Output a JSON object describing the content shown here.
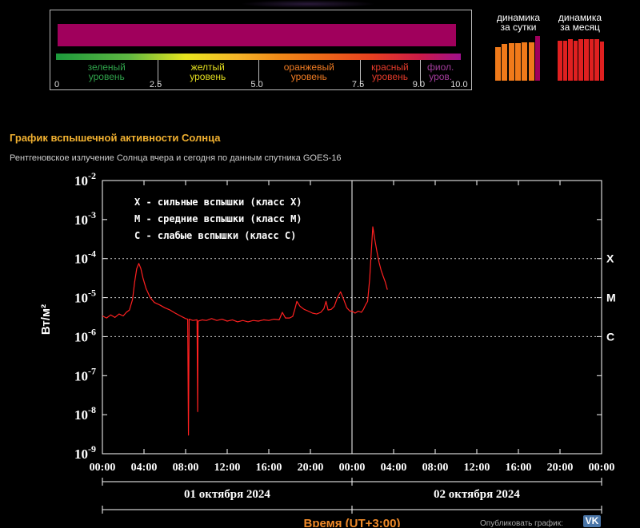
{
  "scale": {
    "levels": [
      {
        "line1": "зеленый",
        "line2": "уровень",
        "color": "#2fa24a"
      },
      {
        "line1": "желтый",
        "line2": "уровень",
        "color": "#e4df1f"
      },
      {
        "line1": "оранжевый",
        "line2": "уровень",
        "color": "#ee7a22"
      },
      {
        "line1": "красный",
        "line2": "уровень",
        "color": "#e43a2a"
      },
      {
        "line1": "фиол.",
        "line2": "уров.",
        "color": "#a33c9c"
      }
    ],
    "ticks": [
      "0",
      "2.5",
      "5.0",
      "7.5",
      "9.0",
      "10.0"
    ],
    "current_value": 10.0,
    "bar_color": "#a0005c"
  },
  "dynamics": {
    "day_title": [
      "динамика",
      "за сутки"
    ],
    "month_title": [
      "динамика",
      "за месяц"
    ],
    "day_values": [
      7.5,
      8.2,
      8.4,
      8.4,
      8.5,
      8.6,
      10.0
    ],
    "day_colors": [
      "#f07a1a",
      "#f07a1a",
      "#f07a1a",
      "#f07a1a",
      "#f07a1a",
      "#f07a1a",
      "#a0005c"
    ],
    "month_values": [
      9.0,
      9.0,
      9.2,
      9.0,
      9.2,
      9.2,
      9.2,
      9.2,
      8.8
    ],
    "month_color": "#e02020"
  },
  "chart_title": "График вспышечной активности Солнца",
  "chart_subtitle": "Рентгеновское излучение Солнца вчера и сегодня по данным спутника GOES-16",
  "publish_label": "Опубликовать график:",
  "vk_label": "VK",
  "chart_data": {
    "type": "line",
    "title": "График вспышечной активности Солнца",
    "ylabel": "Вт/м²",
    "xlabel": "Время (UT+3:00)",
    "y_scale": "log",
    "ylim": [
      1e-09,
      0.01
    ],
    "y_ticks": [
      "10^-2",
      "10^-3",
      "10^-4",
      "10^-5",
      "10^-6",
      "10^-7",
      "10^-8",
      "10^-9"
    ],
    "x_range_hours": [
      0,
      48
    ],
    "x_tick_labels": [
      "00:00",
      "04:00",
      "08:00",
      "12:00",
      "16:00",
      "20:00",
      "00:00",
      "04:00",
      "08:00",
      "12:00",
      "16:00",
      "20:00",
      "00:00"
    ],
    "days": [
      {
        "label": "01 октября 2024",
        "from_hour": 0,
        "to_hour": 24
      },
      {
        "label": "02 октября 2024",
        "from_hour": 24,
        "to_hour": 48
      }
    ],
    "day_separator_hour": 24,
    "class_lines": [
      {
        "label": "X",
        "value": 0.0001
      },
      {
        "label": "M",
        "value": 1e-05
      },
      {
        "label": "C",
        "value": 1e-06
      }
    ],
    "legend": [
      {
        "key": "X",
        "text": " - сильные вспышки (класс X)"
      },
      {
        "key": "M",
        "text": " - средние вспышки (класс M)"
      },
      {
        "key": "C",
        "text": " - слабые вспышки (класс C)"
      }
    ],
    "line_color": "#ff2020",
    "series": [
      {
        "points": [
          [
            0.0,
            3.4e-06
          ],
          [
            0.4,
            3e-06
          ],
          [
            0.8,
            3.6e-06
          ],
          [
            1.2,
            3.1e-06
          ],
          [
            1.6,
            3.8e-06
          ],
          [
            2.0,
            3.4e-06
          ],
          [
            2.3,
            4.2e-06
          ],
          [
            2.6,
            4.8e-06
          ],
          [
            2.9,
            9e-06
          ],
          [
            3.1,
            2.5e-05
          ],
          [
            3.3,
            5.5e-05
          ],
          [
            3.5,
            7.5e-05
          ],
          [
            3.7,
            5.5e-05
          ],
          [
            3.9,
            3.2e-05
          ],
          [
            4.2,
            1.7e-05
          ],
          [
            4.6,
            1e-05
          ],
          [
            5.0,
            7.5e-06
          ],
          [
            5.5,
            6.5e-06
          ],
          [
            6.0,
            5.5e-06
          ],
          [
            6.5,
            4.8e-06
          ],
          [
            7.0,
            4e-06
          ],
          [
            7.5,
            3.4e-06
          ],
          [
            8.0,
            2.9e-06
          ],
          [
            8.2,
            2.8e-06
          ],
          [
            8.28,
            3e-09
          ],
          [
            8.34,
            2.8e-06
          ],
          [
            8.7,
            2.6e-06
          ],
          [
            9.1,
            2.7e-06
          ],
          [
            9.16,
            1.2e-08
          ],
          [
            9.2,
            2.5e-06
          ],
          [
            9.6,
            2.7e-06
          ],
          [
            10.0,
            2.6e-06
          ],
          [
            10.5,
            2.9e-06
          ],
          [
            11.0,
            2.6e-06
          ],
          [
            11.5,
            2.8e-06
          ],
          [
            12.0,
            2.5e-06
          ],
          [
            12.5,
            2.7e-06
          ],
          [
            13.0,
            2.4e-06
          ],
          [
            13.5,
            2.6e-06
          ],
          [
            14.0,
            2.4e-06
          ],
          [
            14.5,
            2.6e-06
          ],
          [
            15.0,
            2.5e-06
          ],
          [
            15.5,
            2.7e-06
          ],
          [
            16.0,
            2.6e-06
          ],
          [
            16.5,
            2.8e-06
          ],
          [
            17.0,
            2.7e-06
          ],
          [
            17.3,
            4.2e-06
          ],
          [
            17.6,
            3e-06
          ],
          [
            18.0,
            3e-06
          ],
          [
            18.3,
            3.3e-06
          ],
          [
            18.5,
            5e-06
          ],
          [
            18.7,
            8e-06
          ],
          [
            19.0,
            6e-06
          ],
          [
            19.4,
            5e-06
          ],
          [
            19.8,
            4.5e-06
          ],
          [
            20.2,
            4e-06
          ],
          [
            20.6,
            3.8e-06
          ],
          [
            21.0,
            4.2e-06
          ],
          [
            21.3,
            5.2e-06
          ],
          [
            21.5,
            8e-06
          ],
          [
            21.7,
            4.8e-06
          ],
          [
            22.0,
            5e-06
          ],
          [
            22.3,
            6e-06
          ],
          [
            22.6,
            1e-05
          ],
          [
            22.9,
            1.4e-05
          ],
          [
            23.2,
            9e-06
          ],
          [
            23.5,
            5.5e-06
          ],
          [
            23.8,
            4.5e-06
          ],
          [
            24.0,
            4.5e-06
          ],
          [
            24.3,
            4e-06
          ],
          [
            24.6,
            4.5e-06
          ],
          [
            24.9,
            4.2e-06
          ],
          [
            25.1,
            5e-06
          ],
          [
            25.3,
            6.5e-06
          ],
          [
            25.5,
            8e-06
          ],
          [
            25.7,
            3e-05
          ],
          [
            25.85,
            0.00015
          ],
          [
            26.0,
            0.00065
          ],
          [
            26.2,
            0.0003
          ],
          [
            26.4,
            0.00015
          ],
          [
            26.6,
            8e-05
          ],
          [
            26.8,
            5e-05
          ],
          [
            27.0,
            3.5e-05
          ],
          [
            27.2,
            2.5e-05
          ],
          [
            27.4,
            1.6e-05
          ]
        ]
      }
    ]
  }
}
